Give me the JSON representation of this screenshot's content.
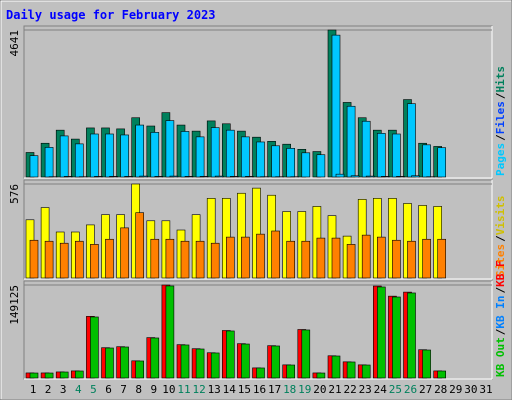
{
  "chart_data": {
    "type": "bar",
    "title": "Daily usage for February 2023",
    "categories": [
      "1",
      "2",
      "3",
      "4",
      "5",
      "6",
      "7",
      "8",
      "9",
      "10",
      "11",
      "12",
      "13",
      "14",
      "15",
      "16",
      "17",
      "18",
      "19",
      "20",
      "21",
      "22",
      "23",
      "24",
      "25",
      "26",
      "27",
      "28",
      "29",
      "30",
      "31"
    ],
    "category_colors": [
      "#000000",
      "#000000",
      "#000000",
      "#00805c",
      "#00805c",
      "#000000",
      "#000000",
      "#000000",
      "#000000",
      "#000000",
      "#00805c",
      "#00805c",
      "#000000",
      "#000000",
      "#000000",
      "#000000",
      "#000000",
      "#00805c",
      "#00805c",
      "#000000",
      "#000000",
      "#000000",
      "#000000",
      "#000000",
      "#00805c",
      "#00805c",
      "#000000",
      "#000000",
      "#000000",
      "#000000",
      "#000000"
    ],
    "legend_separator": "/",
    "panels": [
      {
        "ylim": [
          0,
          4641
        ],
        "yticks": [
          4641
        ],
        "series": [
          {
            "name": "Hits",
            "color": "#00805c",
            "values": [
              800,
              1090,
              1500,
              1220,
              1570,
              1570,
              1540,
              1890,
              1630,
              2050,
              1660,
              1470,
              1790,
              1700,
              1470,
              1280,
              1150,
              1060,
              900,
              830,
              4641,
              2370,
              1890,
              1500,
              1500,
              2460,
              1090,
              990,
              null,
              null,
              null
            ]
          },
          {
            "name": "Files",
            "color": "#0040ff",
            "bar_color": "#00c8ff",
            "values": [
              700,
              960,
              1320,
              1070,
              1380,
              1380,
              1350,
              1660,
              1430,
              1800,
              1460,
              1290,
              1580,
              1500,
              1290,
              1130,
              1010,
              930,
              790,
              730,
              4480,
              2250,
              1780,
              1400,
              1380,
              2330,
              1040,
              950,
              null,
              null,
              null
            ]
          },
          {
            "name": "Pages",
            "color": "#00c8ff",
            "values": [
              30,
              40,
              50,
              40,
              50,
              50,
              50,
              60,
              50,
              60,
              50,
              50,
              60,
              50,
              50,
              40,
              40,
              40,
              30,
              30,
              120,
              70,
              60,
              50,
              50,
              70,
              40,
              30,
              null,
              null,
              null
            ]
          }
        ]
      },
      {
        "ylim": [
          0,
          576
        ],
        "yticks": [
          576
        ],
        "series": [
          {
            "name": "Visits",
            "color": "#ffff00",
            "legend_color": "#d0c000",
            "values": [
              359,
              433,
              285,
              285,
              328,
              390,
              390,
              576,
              353,
              353,
              297,
              390,
              489,
              489,
              520,
              551,
              508,
              409,
              409,
              440,
              384,
              260,
              483,
              489,
              489,
              458,
              446,
              440,
              null,
              null,
              null
            ]
          },
          {
            "name": "Sites",
            "color": "#ff8000",
            "values": [
              235,
              229,
              217,
              229,
              210,
              241,
              310,
              402,
              241,
              241,
              229,
              229,
              217,
              254,
              254,
              272,
              291,
              229,
              229,
              248,
              248,
              210,
              266,
              254,
              235,
              229,
              241,
              241,
              null,
              null,
              null
            ]
          }
        ]
      },
      {
        "ylim": [
          0,
          149125
        ],
        "yticks": [
          149125
        ],
        "series": [
          {
            "name": "KB F",
            "color": "#ff0000",
            "values": [
              9620,
              9620,
              11220,
              12820,
              99390,
              49690,
              51300,
              28850,
              65720,
              149125,
              54500,
              48090,
              41680,
              76940,
              56100,
              17630,
              52900,
              22440,
              78550,
              9620,
              36870,
              27250,
              22440,
              147480,
              131450,
              137860,
              46490,
              12820,
              null,
              null,
              null
            ]
          },
          {
            "name": "KB In",
            "color": "#0080ff",
            "bar_color": "#00c000",
            "values": [
              9500,
              9500,
              11100,
              12700,
              98400,
              49200,
              50800,
              28600,
              65100,
              147600,
              54000,
              47600,
              41300,
              76200,
              55500,
              17500,
              52400,
              22200,
              77800,
              9500,
              36500,
              27000,
              22200,
              146000,
              130100,
              136500,
              46000,
              12700,
              null,
              null,
              null
            ]
          },
          {
            "name": "KB Out",
            "color": "#00c000",
            "bar_color": "#0080ff",
            "values": [
              50,
              50,
              60,
              60,
              500,
              250,
              260,
              150,
              330,
              750,
              270,
              240,
              210,
              380,
              280,
              90,
              260,
              110,
              390,
              50,
              180,
              140,
              110,
              740,
              660,
              690,
              230,
              60,
              null,
              null,
              null
            ]
          }
        ]
      }
    ]
  }
}
